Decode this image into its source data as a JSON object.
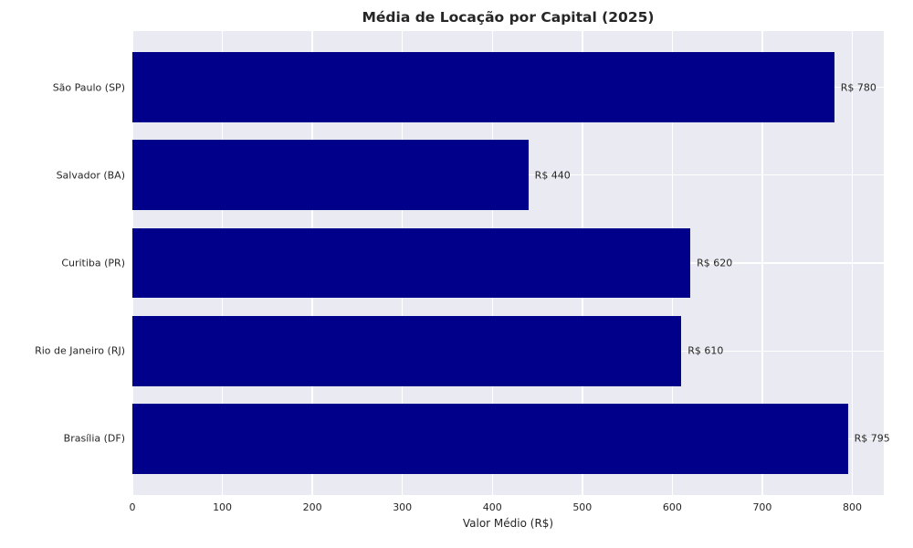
{
  "chart_data": {
    "type": "bar",
    "orientation": "horizontal",
    "title": "Média de Locação por Capital (2025)",
    "xlabel": "Valor Médio (R$)",
    "ylabel": "",
    "categories": [
      "São Paulo (SP)",
      "Salvador (BA)",
      "Curitiba (PR)",
      "Rio de Janeiro (RJ)",
      "Brasília (DF)"
    ],
    "values": [
      780,
      440,
      620,
      610,
      795
    ],
    "value_labels": [
      "R$ 780",
      "R$ 440",
      "R$ 620",
      "R$ 610",
      "R$ 795"
    ],
    "xticks": [
      0,
      100,
      200,
      300,
      400,
      500,
      600,
      700,
      800
    ],
    "xlim": [
      0,
      835
    ],
    "grid": true,
    "legend": "none",
    "colors": {
      "bar": "#00008B",
      "plot_background": "#EAEAF2",
      "figure_background": "#FFFFFF",
      "gridline": "#FFFFFF",
      "text": "#262626"
    }
  }
}
